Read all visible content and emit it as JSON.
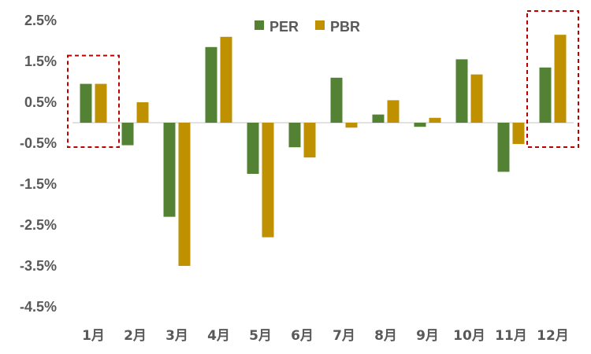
{
  "chart_data": {
    "type": "bar",
    "categories": [
      "1月",
      "2月",
      "3月",
      "4月",
      "5月",
      "6月",
      "7月",
      "8月",
      "9月",
      "10月",
      "11月",
      "12月"
    ],
    "series": [
      {
        "name": "PER",
        "color": "#548235",
        "values": [
          0.95,
          -0.55,
          -2.3,
          1.85,
          -1.25,
          -0.6,
          1.1,
          0.2,
          -0.1,
          1.55,
          -1.2,
          1.35
        ]
      },
      {
        "name": "PBR",
        "color": "#BF9000",
        "values": [
          0.95,
          0.5,
          -3.5,
          2.1,
          -2.8,
          -0.85,
          -0.12,
          0.55,
          0.12,
          1.18,
          -0.52,
          2.15
        ]
      }
    ],
    "y_ticks": [
      "2.5%",
      "1.5%",
      "0.5%",
      "-0.5%",
      "-1.5%",
      "-2.5%",
      "-3.5%",
      "-4.5%"
    ],
    "y_tick_values": [
      2.5,
      1.5,
      0.5,
      -0.5,
      -1.5,
      -2.5,
      -3.5,
      -4.5
    ],
    "ylim": [
      -4.5,
      2.5
    ],
    "legend_position": "top",
    "grid": false,
    "highlighted_categories": [
      "1月",
      "12月"
    ],
    "highlight_color": "#C00000"
  }
}
